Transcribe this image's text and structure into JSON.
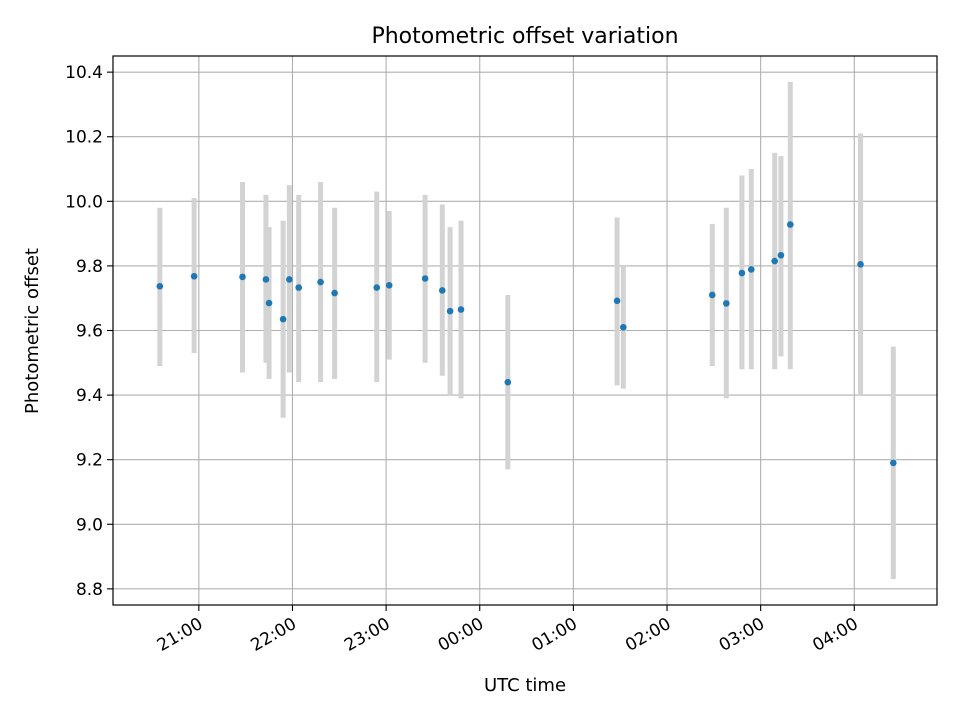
{
  "chart_data": {
    "type": "scatter",
    "title": "Photometric offset variation",
    "xlabel": "UTC time",
    "ylabel": "Photometric offset",
    "xlim": [
      "2000-01-01T20:05",
      "2000-01-02T04:53"
    ],
    "ylim": [
      8.75,
      10.45
    ],
    "grid": true,
    "x_ticks": [
      {
        "t": "2000-01-01T21:00",
        "label": "21:00"
      },
      {
        "t": "2000-01-01T22:00",
        "label": "22:00"
      },
      {
        "t": "2000-01-01T23:00",
        "label": "23:00"
      },
      {
        "t": "2000-01-02T00:00",
        "label": "00:00"
      },
      {
        "t": "2000-01-02T01:00",
        "label": "01:00"
      },
      {
        "t": "2000-01-02T02:00",
        "label": "02:00"
      },
      {
        "t": "2000-01-02T03:00",
        "label": "03:00"
      },
      {
        "t": "2000-01-02T04:00",
        "label": "04:00"
      }
    ],
    "y_ticks": [
      {
        "v": 8.8,
        "label": "8.8"
      },
      {
        "v": 9.0,
        "label": "9.0"
      },
      {
        "v": 9.2,
        "label": "9.2"
      },
      {
        "v": 9.4,
        "label": "9.4"
      },
      {
        "v": 9.6,
        "label": "9.6"
      },
      {
        "v": 9.8,
        "label": "9.8"
      },
      {
        "v": 10.0,
        "label": "10.0"
      },
      {
        "v": 10.2,
        "label": "10.2"
      },
      {
        "v": 10.4,
        "label": "10.4"
      }
    ],
    "point_color": "#1f77b4",
    "error_color": "#d3d3d3",
    "points": [
      {
        "t": "2000-01-01T20:35",
        "y": 9.737,
        "ymin": 9.49,
        "ymax": 9.98
      },
      {
        "t": "2000-01-01T20:57",
        "y": 9.768,
        "ymin": 9.53,
        "ymax": 10.01
      },
      {
        "t": "2000-01-01T21:28",
        "y": 9.766,
        "ymin": 9.47,
        "ymax": 10.06
      },
      {
        "t": "2000-01-01T21:43",
        "y": 9.758,
        "ymin": 9.5,
        "ymax": 10.02
      },
      {
        "t": "2000-01-01T21:45",
        "y": 9.685,
        "ymin": 9.45,
        "ymax": 9.92
      },
      {
        "t": "2000-01-01T21:54",
        "y": 9.635,
        "ymin": 9.33,
        "ymax": 9.94
      },
      {
        "t": "2000-01-01T21:58",
        "y": 9.758,
        "ymin": 9.47,
        "ymax": 10.05
      },
      {
        "t": "2000-01-01T22:04",
        "y": 9.733,
        "ymin": 9.44,
        "ymax": 10.02
      },
      {
        "t": "2000-01-01T22:18",
        "y": 9.75,
        "ymin": 9.44,
        "ymax": 10.06
      },
      {
        "t": "2000-01-01T22:27",
        "y": 9.716,
        "ymin": 9.45,
        "ymax": 9.98
      },
      {
        "t": "2000-01-01T22:54",
        "y": 9.733,
        "ymin": 9.44,
        "ymax": 10.03
      },
      {
        "t": "2000-01-01T23:02",
        "y": 9.74,
        "ymin": 9.51,
        "ymax": 9.97
      },
      {
        "t": "2000-01-01T23:25",
        "y": 9.761,
        "ymin": 9.5,
        "ymax": 10.02
      },
      {
        "t": "2000-01-01T23:36",
        "y": 9.724,
        "ymin": 9.46,
        "ymax": 9.99
      },
      {
        "t": "2000-01-01T23:41",
        "y": 9.66,
        "ymin": 9.4,
        "ymax": 9.92
      },
      {
        "t": "2000-01-01T23:48",
        "y": 9.665,
        "ymin": 9.39,
        "ymax": 9.94
      },
      {
        "t": "2000-01-02T00:18",
        "y": 9.44,
        "ymin": 9.17,
        "ymax": 9.71
      },
      {
        "t": "2000-01-02T01:28",
        "y": 9.692,
        "ymin": 9.43,
        "ymax": 9.95
      },
      {
        "t": "2000-01-02T01:32",
        "y": 9.61,
        "ymin": 9.42,
        "ymax": 9.8
      },
      {
        "t": "2000-01-02T02:29",
        "y": 9.71,
        "ymin": 9.49,
        "ymax": 9.93
      },
      {
        "t": "2000-01-02T02:38",
        "y": 9.684,
        "ymin": 9.39,
        "ymax": 9.98
      },
      {
        "t": "2000-01-02T02:48",
        "y": 9.778,
        "ymin": 9.48,
        "ymax": 10.08
      },
      {
        "t": "2000-01-02T02:54",
        "y": 9.789,
        "ymin": 9.48,
        "ymax": 10.1
      },
      {
        "t": "2000-01-02T03:09",
        "y": 9.815,
        "ymin": 9.48,
        "ymax": 10.15
      },
      {
        "t": "2000-01-02T03:13",
        "y": 9.833,
        "ymin": 9.52,
        "ymax": 10.14
      },
      {
        "t": "2000-01-02T03:19",
        "y": 9.928,
        "ymin": 9.48,
        "ymax": 10.37
      },
      {
        "t": "2000-01-02T04:04",
        "y": 9.805,
        "ymin": 9.4,
        "ymax": 10.21
      },
      {
        "t": "2000-01-02T04:25",
        "y": 9.19,
        "ymin": 8.83,
        "ymax": 9.55
      }
    ]
  }
}
